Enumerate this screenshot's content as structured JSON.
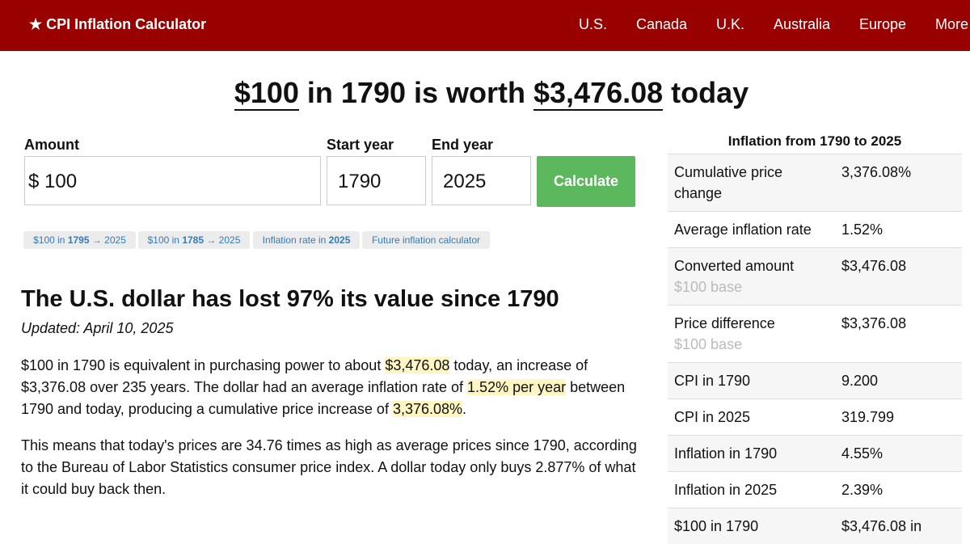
{
  "header": {
    "brand": "★ CPI Inflation Calculator",
    "nav": [
      "U.S.",
      "Canada",
      "U.K.",
      "Australia",
      "Europe",
      "More"
    ]
  },
  "headline": [
    "$100",
    " in 1790 is worth ",
    "$3,476.08",
    " today"
  ],
  "form": {
    "amount_label": "Amount",
    "currency": "$",
    "amount": "100",
    "start_label": "Start year",
    "start": "1790",
    "end_label": "End year",
    "end": "2025",
    "button": "Calculate"
  },
  "chips": [
    [
      "$100 in ",
      "1795",
      " → 2025"
    ],
    [
      "$100 in ",
      "1785",
      " → 2025"
    ],
    [
      "Inflation rate in ",
      "2025"
    ],
    [
      "Future inflation calculator"
    ]
  ],
  "article": {
    "heading": "The U.S. dollar has lost 97% its value since 1790",
    "updated": "Updated: April 10, 2025",
    "paragraphs": [
      [
        "$100 in 1790 is equivalent in purchasing power to about ",
        "$3,476.08",
        " today, an increase of $3,376.08 over 235 years. The dollar had an average inflation rate of ",
        "1.52% per year",
        " between 1790 and today, producing a cumulative price increase of ",
        "3,376.08%",
        "."
      ],
      [
        "This means that today's prices are 34.76 times as high as average prices since 1790, according to the Bureau of Labor Statistics consumer price index. A dollar today only buys 2.877% of what it could buy back then."
      ]
    ]
  },
  "sidebar": {
    "title": "Inflation from 1790 to 2025",
    "rows": [
      [
        "Cumulative price change",
        "3,376.08%"
      ],
      [
        "Average inflation rate",
        "1.52%"
      ],
      [
        "Converted amount",
        "$3,476.08",
        "$100 base"
      ],
      [
        "Price difference",
        "$3,376.08",
        "$100 base"
      ],
      [
        "CPI in 1790",
        "9.200"
      ],
      [
        "CPI in 2025",
        "319.799"
      ],
      [
        "Inflation in 1790",
        "4.55%"
      ],
      [
        "Inflation in 2025",
        "2.39%"
      ],
      [
        "$100 in 1790",
        "$3,476.08 in"
      ]
    ]
  }
}
